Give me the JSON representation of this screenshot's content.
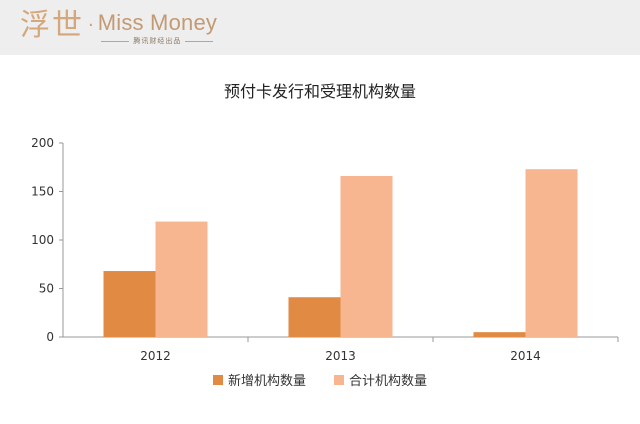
{
  "brand": {
    "logo_cn": "浮世",
    "logo_dot": "·",
    "logo_en": "Miss Money",
    "logo_sub": "腾讯财经出品"
  },
  "chart_data": {
    "type": "bar",
    "title": "预付卡发行和受理机构数量",
    "categories": [
      "2012",
      "2013",
      "2014"
    ],
    "series": [
      {
        "name": "新增机构数量",
        "values": [
          68,
          41,
          5
        ],
        "color": "#e08a44"
      },
      {
        "name": "合计机构数量",
        "values": [
          119,
          166,
          173
        ],
        "color": "#f8b690"
      }
    ],
    "ylim": [
      0,
      200
    ],
    "yticks": [
      "0",
      "50",
      "100",
      "150",
      "200"
    ],
    "xlabel": "",
    "ylabel": "",
    "grid": false,
    "legend_position": "bottom"
  }
}
